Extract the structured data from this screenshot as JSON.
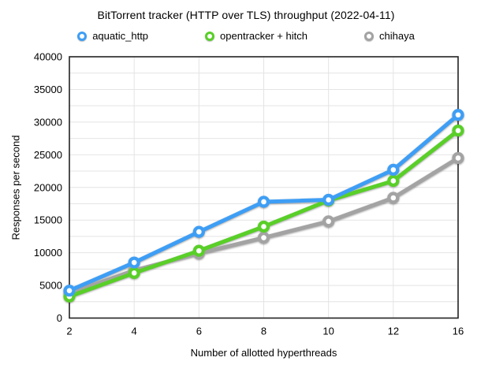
{
  "chart_data": {
    "type": "line",
    "title": "BitTorrent tracker (HTTP over TLS) throughput (2022-04-11)",
    "x": [
      2,
      4,
      6,
      8,
      10,
      12,
      16
    ],
    "xlabel": "Number of allotted hyperthreads",
    "ylabel": "Responses per second",
    "ylim": [
      0,
      40000
    ],
    "y_major_step": 5000,
    "y_minor_step": 2500,
    "grid": true,
    "legend_position": "top",
    "marker": "circle-open",
    "series": [
      {
        "name": "aquatic_http",
        "color": "#3e9ef5",
        "values": [
          4200,
          8500,
          13200,
          17800,
          18100,
          22700,
          31100
        ]
      },
      {
        "name": "opentracker + hitch",
        "color": "#59cf28",
        "values": [
          3300,
          6900,
          10300,
          14000,
          18000,
          21000,
          28700
        ]
      },
      {
        "name": "chihaya",
        "color": "#a3a3a3",
        "values": [
          3800,
          7300,
          9900,
          12300,
          14800,
          18400,
          24500
        ]
      }
    ]
  }
}
